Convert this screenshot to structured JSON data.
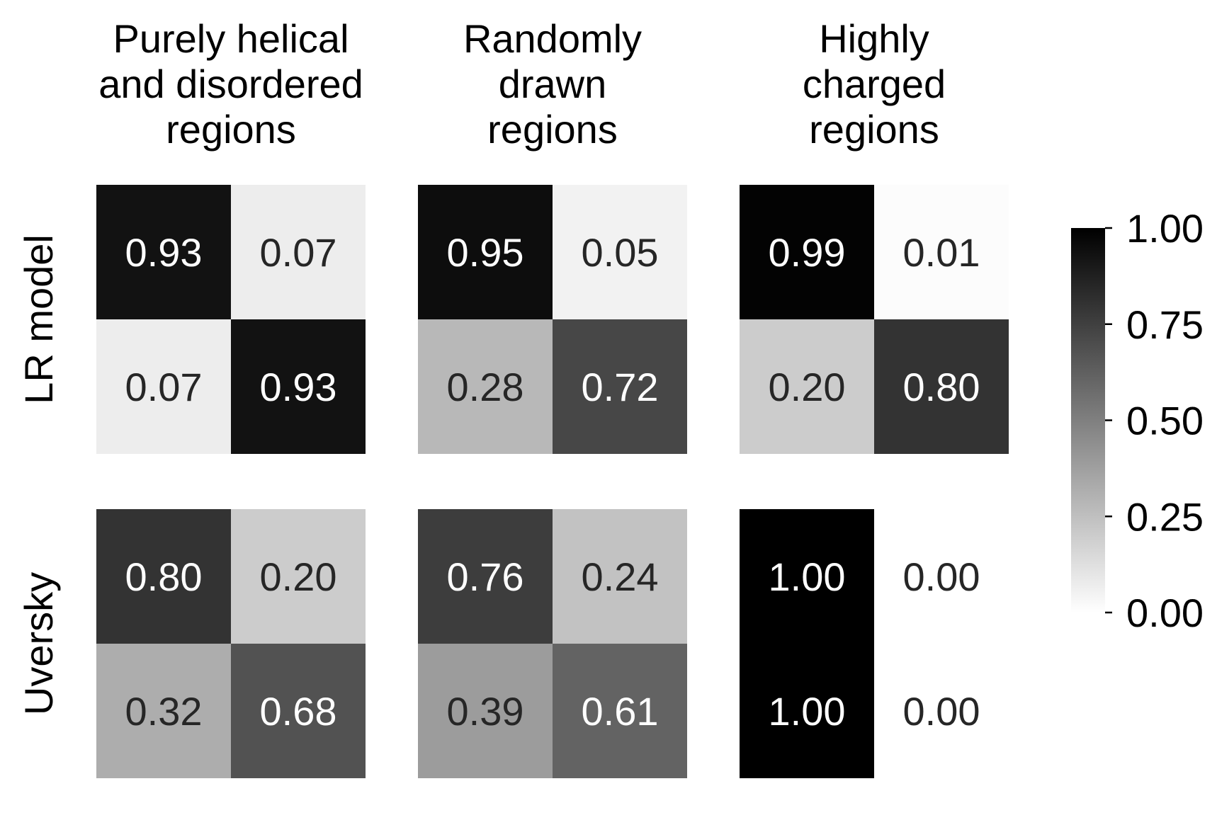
{
  "chart_data": {
    "type": "heatmap",
    "colormap": {
      "low": "#ffffff",
      "high": "#000000"
    },
    "vmin": 0,
    "vmax": 1,
    "grid": false,
    "columns": [
      {
        "title": [
          "Purely helical",
          "and disordered",
          "regions"
        ]
      },
      {
        "title": [
          "Randomly",
          "drawn",
          "regions"
        ]
      },
      {
        "title": [
          "Highly",
          "charged",
          "regions"
        ]
      }
    ],
    "rows": [
      {
        "label": "LR model"
      },
      {
        "label": "Uversky"
      }
    ],
    "panels": [
      [
        {
          "values": [
            [
              0.93,
              0.07
            ],
            [
              0.07,
              0.93
            ]
          ],
          "labels": [
            [
              "0.93",
              "0.07"
            ],
            [
              "0.07",
              "0.93"
            ]
          ]
        },
        {
          "values": [
            [
              0.95,
              0.05
            ],
            [
              0.28,
              0.72
            ]
          ],
          "labels": [
            [
              "0.95",
              "0.05"
            ],
            [
              "0.28",
              "0.72"
            ]
          ]
        },
        {
          "values": [
            [
              0.99,
              0.01
            ],
            [
              0.2,
              0.8
            ]
          ],
          "labels": [
            [
              "0.99",
              "0.01"
            ],
            [
              "0.20",
              "0.80"
            ]
          ]
        }
      ],
      [
        {
          "values": [
            [
              0.8,
              0.2
            ],
            [
              0.32,
              0.68
            ]
          ],
          "labels": [
            [
              "0.80",
              "0.20"
            ],
            [
              "0.32",
              "0.68"
            ]
          ]
        },
        {
          "values": [
            [
              0.76,
              0.24
            ],
            [
              0.39,
              0.61
            ]
          ],
          "labels": [
            [
              "0.76",
              "0.24"
            ],
            [
              "0.39",
              "0.61"
            ]
          ]
        },
        {
          "values": [
            [
              1.0,
              0.0
            ],
            [
              1.0,
              0.0
            ]
          ],
          "labels": [
            [
              "1.00",
              "0.00"
            ],
            [
              "1.00",
              "0.00"
            ]
          ]
        }
      ]
    ],
    "colorbar": {
      "ticks": [
        1.0,
        0.75,
        0.5,
        0.25,
        0.0
      ],
      "tick_labels": [
        "1.00",
        "0.75",
        "0.50",
        "0.25",
        "0.00"
      ],
      "placement": "right"
    }
  }
}
